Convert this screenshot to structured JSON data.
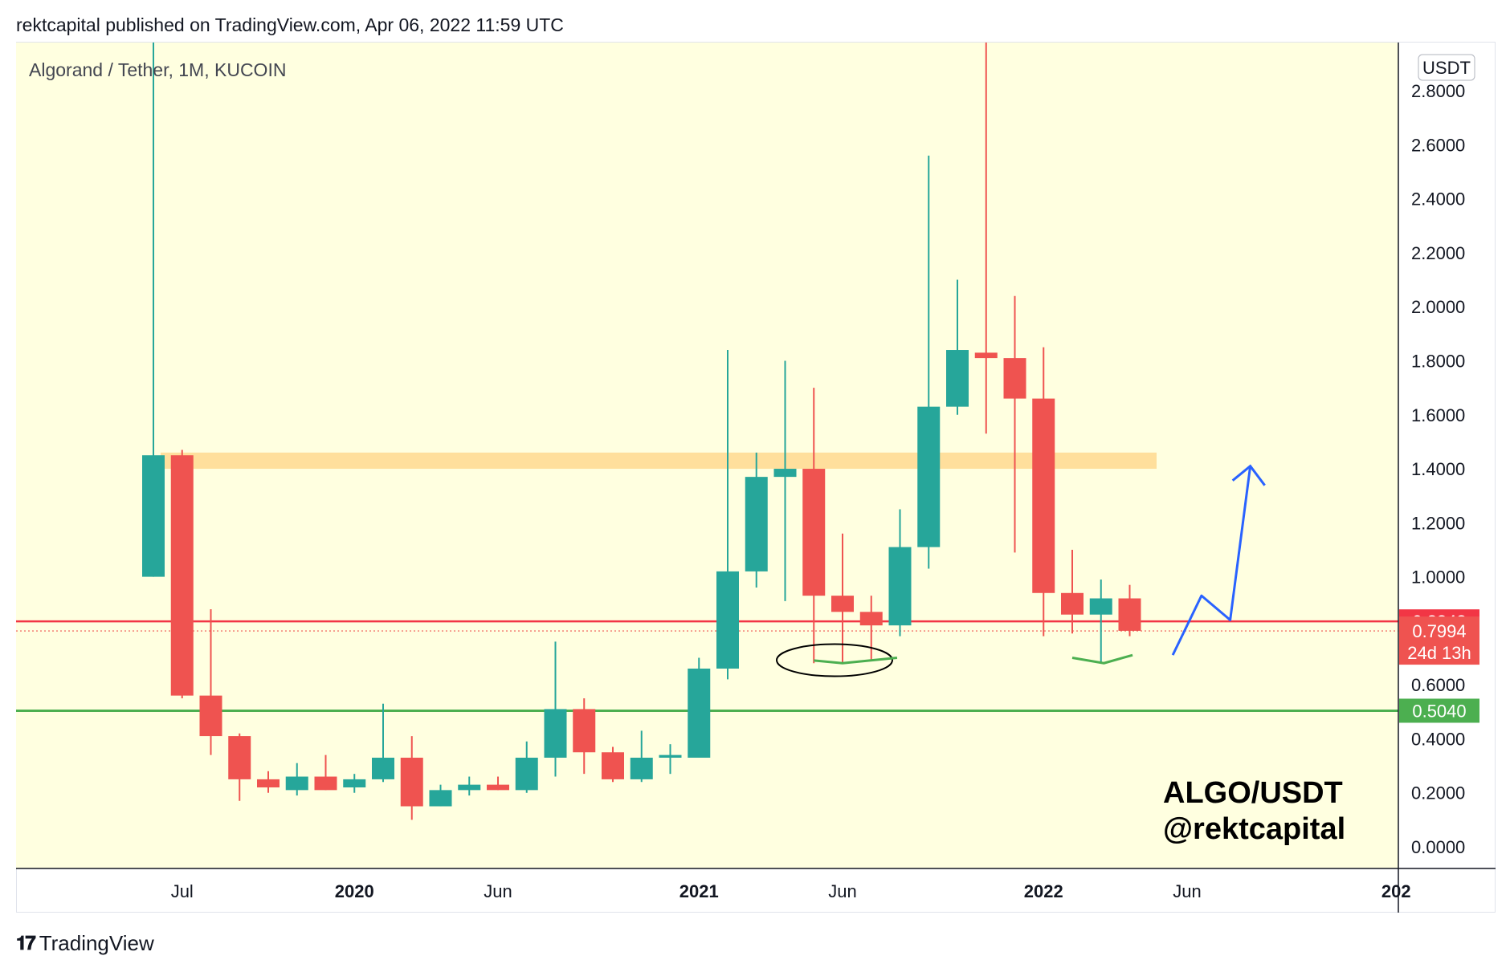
{
  "header": {
    "text": "rektcapital published on TradingView.com, Apr 06, 2022 11:59 UTC"
  },
  "footer": {
    "brand": "TradingView"
  },
  "colors": {
    "background": "#ffffe0",
    "up": "#26a69a",
    "down": "#ef5350",
    "resistance_zone": "#ffd98f",
    "red_line": "#f23645",
    "green_line": "#4caf50",
    "projection": "#2962ff"
  },
  "chart_data": {
    "type": "candlestick",
    "symbol_label": "Algorand / Tether, 1M, KUCOIN",
    "currency": "USDT",
    "watermark_lines": [
      "ALGO/USDT",
      "@rektcapital"
    ],
    "y_axis": {
      "min": 0.0,
      "max": 2.8,
      "ticks": [
        "2.8000",
        "2.6000",
        "2.4000",
        "2.2000",
        "2.0000",
        "1.8000",
        "1.6000",
        "1.4000",
        "1.2000",
        "1.0000",
        "0.8000",
        "0.6000",
        "0.4000",
        "0.2000",
        "0.0000"
      ]
    },
    "x_axis": {
      "labels": [
        {
          "text": "Jul",
          "index": 1,
          "bold": false
        },
        {
          "text": "2020",
          "index": 7,
          "bold": true
        },
        {
          "text": "Jun",
          "index": 12,
          "bold": false
        },
        {
          "text": "2021",
          "index": 19,
          "bold": true
        },
        {
          "text": "Jun",
          "index": 24,
          "bold": false
        },
        {
          "text": "2022",
          "index": 31,
          "bold": true
        },
        {
          "text": "Jun",
          "index": 36,
          "bold": false
        },
        {
          "text": "202",
          "index": 43,
          "bold": true
        }
      ]
    },
    "candles": [
      {
        "month": "2019-06",
        "o": 1.0,
        "h": 3.3,
        "l": 1.0,
        "c": 1.45
      },
      {
        "month": "2019-07",
        "o": 1.45,
        "h": 1.47,
        "l": 0.55,
        "c": 0.56
      },
      {
        "month": "2019-08",
        "o": 0.56,
        "h": 0.88,
        "l": 0.34,
        "c": 0.41
      },
      {
        "month": "2019-09",
        "o": 0.41,
        "h": 0.42,
        "l": 0.17,
        "c": 0.25
      },
      {
        "month": "2019-10",
        "o": 0.25,
        "h": 0.28,
        "l": 0.2,
        "c": 0.22
      },
      {
        "month": "2019-11",
        "o": 0.21,
        "h": 0.31,
        "l": 0.19,
        "c": 0.26
      },
      {
        "month": "2019-12",
        "o": 0.26,
        "h": 0.34,
        "l": 0.21,
        "c": 0.21
      },
      {
        "month": "2020-01",
        "o": 0.22,
        "h": 0.27,
        "l": 0.2,
        "c": 0.25
      },
      {
        "month": "2020-02",
        "o": 0.25,
        "h": 0.53,
        "l": 0.24,
        "c": 0.33
      },
      {
        "month": "2020-03",
        "o": 0.33,
        "h": 0.41,
        "l": 0.1,
        "c": 0.15
      },
      {
        "month": "2020-04",
        "o": 0.15,
        "h": 0.23,
        "l": 0.15,
        "c": 0.21
      },
      {
        "month": "2020-05",
        "o": 0.21,
        "h": 0.26,
        "l": 0.19,
        "c": 0.23
      },
      {
        "month": "2020-06",
        "o": 0.23,
        "h": 0.26,
        "l": 0.21,
        "c": 0.21
      },
      {
        "month": "2020-07",
        "o": 0.21,
        "h": 0.39,
        "l": 0.2,
        "c": 0.33
      },
      {
        "month": "2020-08",
        "o": 0.33,
        "h": 0.76,
        "l": 0.26,
        "c": 0.51
      },
      {
        "month": "2020-09",
        "o": 0.51,
        "h": 0.55,
        "l": 0.27,
        "c": 0.35
      },
      {
        "month": "2020-10",
        "o": 0.35,
        "h": 0.37,
        "l": 0.24,
        "c": 0.25
      },
      {
        "month": "2020-11",
        "o": 0.25,
        "h": 0.43,
        "l": 0.24,
        "c": 0.33
      },
      {
        "month": "2020-12",
        "o": 0.33,
        "h": 0.38,
        "l": 0.27,
        "c": 0.34
      },
      {
        "month": "2021-01",
        "o": 0.33,
        "h": 0.7,
        "l": 0.33,
        "c": 0.66
      },
      {
        "month": "2021-02",
        "o": 0.66,
        "h": 1.84,
        "l": 0.62,
        "c": 1.02
      },
      {
        "month": "2021-03",
        "o": 1.02,
        "h": 1.46,
        "l": 0.96,
        "c": 1.37
      },
      {
        "month": "2021-04",
        "o": 1.37,
        "h": 1.8,
        "l": 0.91,
        "c": 1.4
      },
      {
        "month": "2021-05",
        "o": 1.4,
        "h": 1.7,
        "l": 0.68,
        "c": 0.93
      },
      {
        "month": "2021-06",
        "o": 0.93,
        "h": 1.16,
        "l": 0.68,
        "c": 0.87
      },
      {
        "month": "2021-07",
        "o": 0.87,
        "h": 0.93,
        "l": 0.69,
        "c": 0.82
      },
      {
        "month": "2021-08",
        "o": 0.82,
        "h": 1.25,
        "l": 0.78,
        "c": 1.11
      },
      {
        "month": "2021-09",
        "o": 1.11,
        "h": 2.56,
        "l": 1.03,
        "c": 1.63
      },
      {
        "month": "2021-10",
        "o": 1.63,
        "h": 2.1,
        "l": 1.6,
        "c": 1.84
      },
      {
        "month": "2021-11",
        "o": 1.83,
        "h": 3.1,
        "l": 1.53,
        "c": 1.81
      },
      {
        "month": "2021-12",
        "o": 1.81,
        "h": 2.04,
        "l": 1.09,
        "c": 1.66
      },
      {
        "month": "2022-01",
        "o": 1.66,
        "h": 1.85,
        "l": 0.78,
        "c": 0.94
      },
      {
        "month": "2022-02",
        "o": 0.94,
        "h": 1.1,
        "l": 0.79,
        "c": 0.86
      },
      {
        "month": "2022-03",
        "o": 0.86,
        "h": 0.99,
        "l": 0.68,
        "c": 0.92
      },
      {
        "month": "2022-04",
        "o": 0.92,
        "h": 0.97,
        "l": 0.78,
        "c": 0.8
      }
    ],
    "levels": {
      "resistance_zone": [
        1.4,
        1.46
      ],
      "red_line": 0.8348,
      "green_line": 0.504,
      "last_price": 0.7994
    },
    "badges": {
      "red_line_label": "0.8348",
      "last_price_label": "0.7994",
      "countdown": "24d 13h",
      "green_line_label": "0.5040"
    },
    "annotations": {
      "ellipse_center": {
        "index": 24.0,
        "value": 0.7
      },
      "green_support_1": [
        {
          "index": 23.0,
          "value": 0.69
        },
        {
          "index": 24.0,
          "value": 0.68
        },
        {
          "index": 25.9,
          "value": 0.7
        }
      ],
      "green_support_2": [
        {
          "index": 32.0,
          "value": 0.7
        },
        {
          "index": 33.1,
          "value": 0.68
        },
        {
          "index": 34.1,
          "value": 0.71
        }
      ],
      "projection_path": [
        {
          "index": 35.5,
          "value": 0.71
        },
        {
          "index": 36.5,
          "value": 0.93
        },
        {
          "index": 37.5,
          "value": 0.84
        },
        {
          "index": 38.2,
          "value": 1.41
        }
      ]
    }
  }
}
